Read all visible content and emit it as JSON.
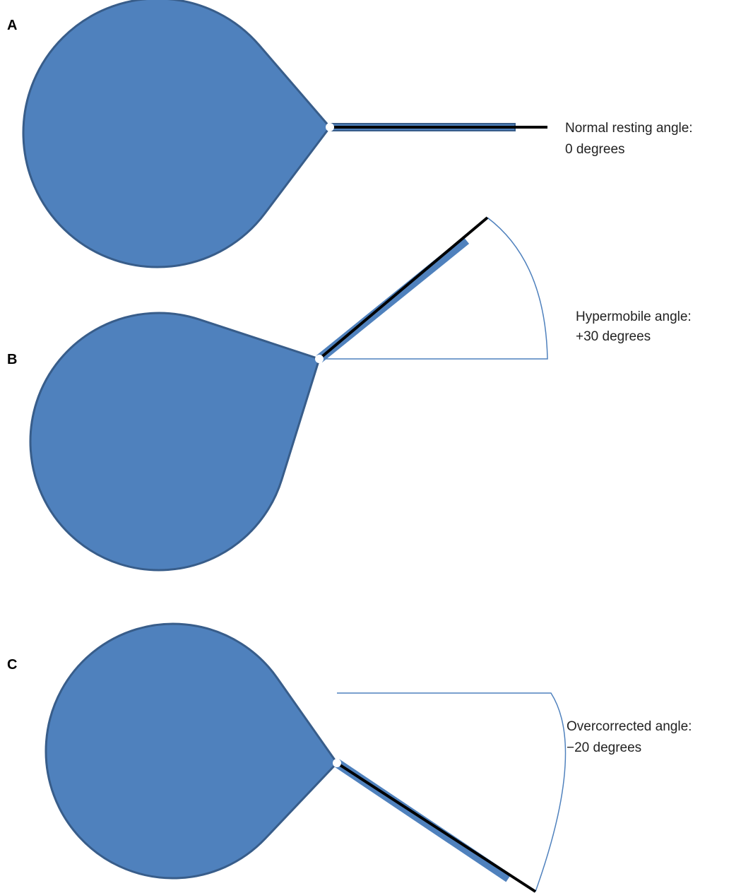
{
  "panels": [
    {
      "label": "A",
      "caption": [
        "Normal resting angle:",
        "0 degrees"
      ]
    },
    {
      "label": "B",
      "caption": [
        "Hypermobile angle:",
        "+30 degrees"
      ]
    },
    {
      "label": "C",
      "caption": [
        "Overcorrected angle:",
        "−20 degrees"
      ]
    }
  ]
}
